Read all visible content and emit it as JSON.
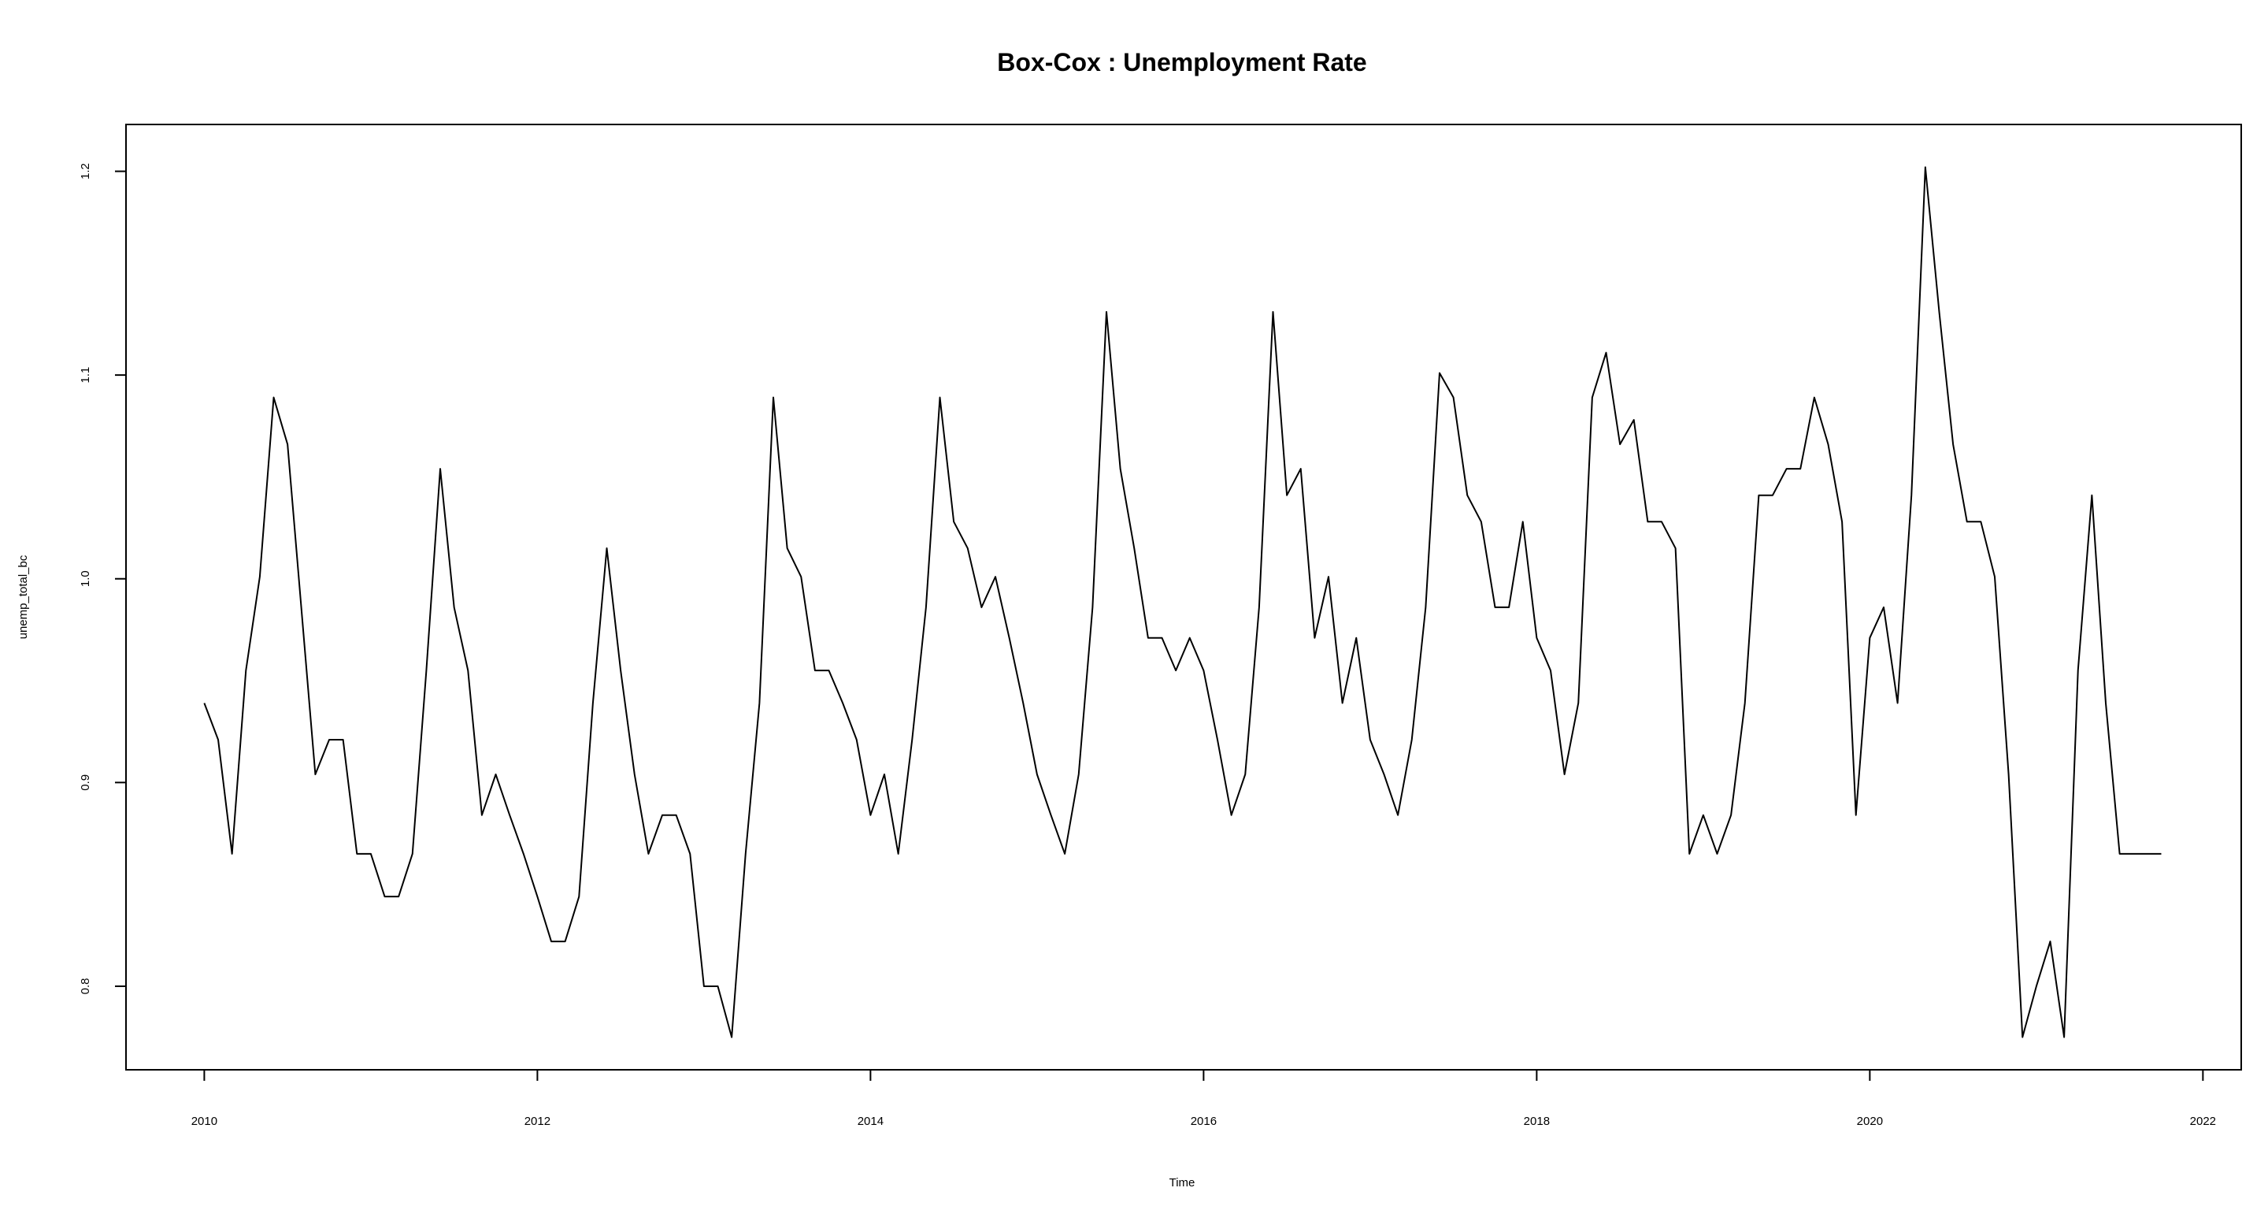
{
  "chart_data": {
    "type": "line",
    "title": "Box-Cox : Unemployment Rate",
    "xlabel": "Time",
    "ylabel": "unemp_total_bc",
    "xlim": [
      2009.53,
      2022.23
    ],
    "ylim": [
      0.759,
      1.223
    ],
    "x_start": 2010,
    "frequency": 12,
    "x_ticks": [
      2010,
      2012,
      2014,
      2016,
      2018,
      2020,
      2022
    ],
    "y_ticks": [
      0.8,
      0.9,
      1.0,
      1.1,
      1.2
    ],
    "x_tick_labels": [
      "2010",
      "2012",
      "2014",
      "2016",
      "2018",
      "2020",
      "2022"
    ],
    "y_tick_labels": [
      "0.8",
      "0.9",
      "1.0",
      "1.1",
      "1.2"
    ],
    "grid": false,
    "legend": "none",
    "line_color": "#000000",
    "series": [
      {
        "values": [
          0.939,
          0.921,
          0.865,
          0.955,
          1.001,
          1.089,
          1.066,
          0.985,
          0.904,
          0.921,
          0.921,
          0.865,
          0.865,
          0.844,
          0.844,
          0.865,
          0.955,
          1.054,
          0.986,
          0.955,
          0.884,
          0.904,
          0.884,
          0.865,
          0.844,
          0.822,
          0.822,
          0.844,
          0.939,
          1.015,
          0.955,
          0.904,
          0.865,
          0.884,
          0.884,
          0.865,
          0.8,
          0.8,
          0.775,
          0.865,
          0.939,
          1.089,
          1.015,
          1.001,
          0.955,
          0.955,
          0.939,
          0.921,
          0.884,
          0.904,
          0.865,
          0.921,
          0.986,
          1.089,
          1.028,
          1.015,
          0.986,
          1.001,
          0.971,
          0.939,
          0.904,
          0.884,
          0.865,
          0.904,
          0.986,
          1.131,
          1.054,
          1.015,
          0.971,
          0.971,
          0.955,
          0.971,
          0.955,
          0.921,
          0.884,
          0.904,
          0.986,
          1.131,
          1.041,
          1.054,
          0.971,
          1.001,
          0.939,
          0.971,
          0.921,
          0.904,
          0.884,
          0.921,
          0.986,
          1.101,
          1.089,
          1.041,
          1.028,
          0.986,
          0.986,
          1.028,
          0.971,
          0.955,
          0.904,
          0.939,
          1.089,
          1.111,
          1.066,
          1.078,
          1.028,
          1.028,
          1.015,
          0.865,
          0.884,
          0.865,
          0.884,
          0.939,
          1.041,
          1.041,
          1.054,
          1.054,
          1.089,
          1.066,
          1.028,
          0.884,
          0.971,
          0.986,
          0.939,
          1.041,
          1.202,
          1.131,
          1.066,
          1.028,
          1.028,
          1.001,
          0.904,
          0.775,
          0.8,
          0.822,
          0.775,
          0.955,
          1.041,
          0.939,
          0.865,
          0.865,
          0.865,
          0.865
        ]
      }
    ]
  }
}
